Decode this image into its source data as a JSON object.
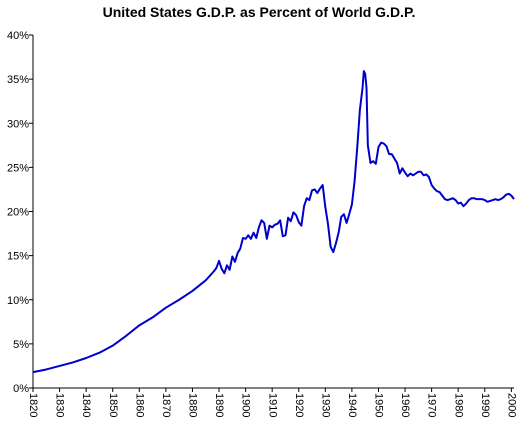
{
  "chart_data": {
    "type": "line",
    "title": "United States G.D.P. as Percent of World G.D.P.",
    "xlabel": "",
    "ylabel": "",
    "xlim": [
      1820,
      2001
    ],
    "ylim": [
      0,
      40
    ],
    "grid": false,
    "y_tick_labels": [
      "0%",
      "5%",
      "10%",
      "15%",
      "20%",
      "25%",
      "30%",
      "35%",
      "40%"
    ],
    "y_tick_values": [
      0,
      5,
      10,
      15,
      20,
      25,
      30,
      35,
      40
    ],
    "x_tick_labels": [
      "1820",
      "1830",
      "1840",
      "1850",
      "1860",
      "1870",
      "1880",
      "1890",
      "1900",
      "1910",
      "1920",
      "1930",
      "1940",
      "1950",
      "1960",
      "1970",
      "1980",
      "1990",
      "2000"
    ],
    "x_tick_values": [
      1820,
      1830,
      1840,
      1850,
      1860,
      1870,
      1880,
      1890,
      1900,
      1910,
      1920,
      1930,
      1940,
      1950,
      1960,
      1970,
      1980,
      1990,
      2000
    ],
    "series": [
      {
        "color": "#0000cc",
        "points": [
          [
            1820,
            1.8
          ],
          [
            1825,
            2.1
          ],
          [
            1830,
            2.5
          ],
          [
            1835,
            2.9
          ],
          [
            1840,
            3.4
          ],
          [
            1845,
            4.0
          ],
          [
            1850,
            4.8
          ],
          [
            1855,
            5.9
          ],
          [
            1860,
            7.1
          ],
          [
            1865,
            8.0
          ],
          [
            1870,
            9.1
          ],
          [
            1875,
            10.0
          ],
          [
            1880,
            11.0
          ],
          [
            1885,
            12.2
          ],
          [
            1888,
            13.2
          ],
          [
            1889,
            13.6
          ],
          [
            1890,
            14.4
          ],
          [
            1891,
            13.5
          ],
          [
            1892,
            13.0
          ],
          [
            1893,
            13.9
          ],
          [
            1894,
            13.4
          ],
          [
            1895,
            14.9
          ],
          [
            1896,
            14.3
          ],
          [
            1897,
            15.3
          ],
          [
            1898,
            15.8
          ],
          [
            1899,
            17.0
          ],
          [
            1900,
            16.9
          ],
          [
            1901,
            17.3
          ],
          [
            1902,
            16.9
          ],
          [
            1903,
            17.6
          ],
          [
            1904,
            17.0
          ],
          [
            1905,
            18.2
          ],
          [
            1906,
            19.0
          ],
          [
            1907,
            18.7
          ],
          [
            1908,
            16.9
          ],
          [
            1909,
            18.4
          ],
          [
            1910,
            18.2
          ],
          [
            1911,
            18.5
          ],
          [
            1912,
            18.6
          ],
          [
            1913,
            19.0
          ],
          [
            1914,
            17.2
          ],
          [
            1915,
            17.3
          ],
          [
            1916,
            19.3
          ],
          [
            1917,
            18.9
          ],
          [
            1918,
            19.9
          ],
          [
            1919,
            19.6
          ],
          [
            1920,
            18.8
          ],
          [
            1921,
            18.4
          ],
          [
            1922,
            20.6
          ],
          [
            1923,
            21.5
          ],
          [
            1924,
            21.3
          ],
          [
            1925,
            22.4
          ],
          [
            1926,
            22.5
          ],
          [
            1927,
            22.1
          ],
          [
            1928,
            22.6
          ],
          [
            1929,
            23.0
          ],
          [
            1930,
            20.5
          ],
          [
            1931,
            18.6
          ],
          [
            1932,
            16.0
          ],
          [
            1933,
            15.4
          ],
          [
            1934,
            16.4
          ],
          [
            1935,
            17.6
          ],
          [
            1936,
            19.4
          ],
          [
            1937,
            19.7
          ],
          [
            1938,
            18.7
          ],
          [
            1939,
            19.7
          ],
          [
            1940,
            20.8
          ],
          [
            1941,
            23.4
          ],
          [
            1942,
            27.2
          ],
          [
            1943,
            31.5
          ],
          [
            1944,
            34.0
          ],
          [
            1944.5,
            35.9
          ],
          [
            1945,
            35.6
          ],
          [
            1945.5,
            34.0
          ],
          [
            1946,
            27.5
          ],
          [
            1947,
            25.5
          ],
          [
            1948,
            25.7
          ],
          [
            1949,
            25.4
          ],
          [
            1950,
            27.3
          ],
          [
            1951,
            27.8
          ],
          [
            1952,
            27.7
          ],
          [
            1953,
            27.4
          ],
          [
            1954,
            26.5
          ],
          [
            1955,
            26.5
          ],
          [
            1956,
            26.0
          ],
          [
            1957,
            25.5
          ],
          [
            1958,
            24.3
          ],
          [
            1959,
            24.9
          ],
          [
            1960,
            24.4
          ],
          [
            1961,
            24.0
          ],
          [
            1962,
            24.3
          ],
          [
            1963,
            24.1
          ],
          [
            1964,
            24.3
          ],
          [
            1965,
            24.5
          ],
          [
            1966,
            24.5
          ],
          [
            1967,
            24.1
          ],
          [
            1968,
            24.2
          ],
          [
            1969,
            23.9
          ],
          [
            1970,
            23.0
          ],
          [
            1971,
            22.6
          ],
          [
            1972,
            22.3
          ],
          [
            1973,
            22.2
          ],
          [
            1974,
            21.8
          ],
          [
            1975,
            21.4
          ],
          [
            1976,
            21.3
          ],
          [
            1977,
            21.4
          ],
          [
            1978,
            21.5
          ],
          [
            1979,
            21.3
          ],
          [
            1980,
            20.9
          ],
          [
            1981,
            21.0
          ],
          [
            1982,
            20.6
          ],
          [
            1983,
            20.9
          ],
          [
            1984,
            21.3
          ],
          [
            1985,
            21.5
          ],
          [
            1986,
            21.5
          ],
          [
            1987,
            21.4
          ],
          [
            1988,
            21.4
          ],
          [
            1989,
            21.4
          ],
          [
            1990,
            21.3
          ],
          [
            1991,
            21.1
          ],
          [
            1992,
            21.2
          ],
          [
            1993,
            21.3
          ],
          [
            1994,
            21.4
          ],
          [
            1995,
            21.3
          ],
          [
            1996,
            21.4
          ],
          [
            1997,
            21.6
          ],
          [
            1998,
            21.9
          ],
          [
            1999,
            22.0
          ],
          [
            2000,
            21.8
          ],
          [
            2001,
            21.4
          ]
        ]
      }
    ]
  }
}
